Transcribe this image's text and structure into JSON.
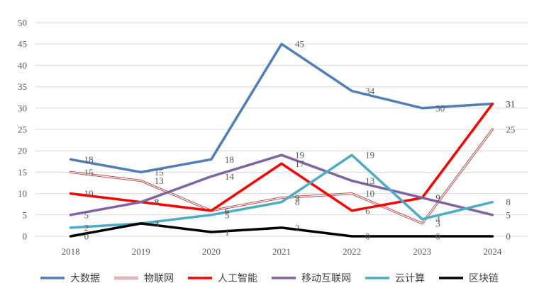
{
  "chart_data": {
    "type": "line",
    "title": "",
    "xlabel": "",
    "ylabel": "",
    "categories": [
      "2018",
      "2019",
      "2020",
      "2021",
      "2022",
      "2023",
      "2024"
    ],
    "ylim": [
      0,
      50
    ],
    "yticks": [
      0,
      5,
      10,
      15,
      20,
      25,
      30,
      35,
      40,
      45,
      50
    ],
    "grid": "horizontal",
    "legend_position": "bottom",
    "series": [
      {
        "name": "大数据",
        "values": [
          18,
          15,
          18,
          45,
          34,
          30,
          31
        ],
        "color": "#4f7fbb",
        "style": "solid"
      },
      {
        "name": "物联网",
        "values": [
          15,
          13,
          6,
          9,
          10,
          3,
          25
        ],
        "color": "#c0504d",
        "style": "double"
      },
      {
        "name": "人工智能",
        "values": [
          10,
          8,
          6,
          17,
          6,
          9,
          31
        ],
        "color": "#ff0000",
        "style": "solid"
      },
      {
        "name": "移动互联网",
        "values": [
          5,
          8,
          14,
          19,
          13,
          9,
          5
        ],
        "color": "#8064a2",
        "style": "solid"
      },
      {
        "name": "云计算",
        "values": [
          2,
          3,
          5,
          8,
          19,
          4,
          8
        ],
        "color": "#4bacc6",
        "style": "solid"
      },
      {
        "name": "区块链",
        "values": [
          0,
          3,
          1,
          2,
          0,
          0,
          0
        ],
        "color": "#000000",
        "style": "solid"
      }
    ]
  }
}
